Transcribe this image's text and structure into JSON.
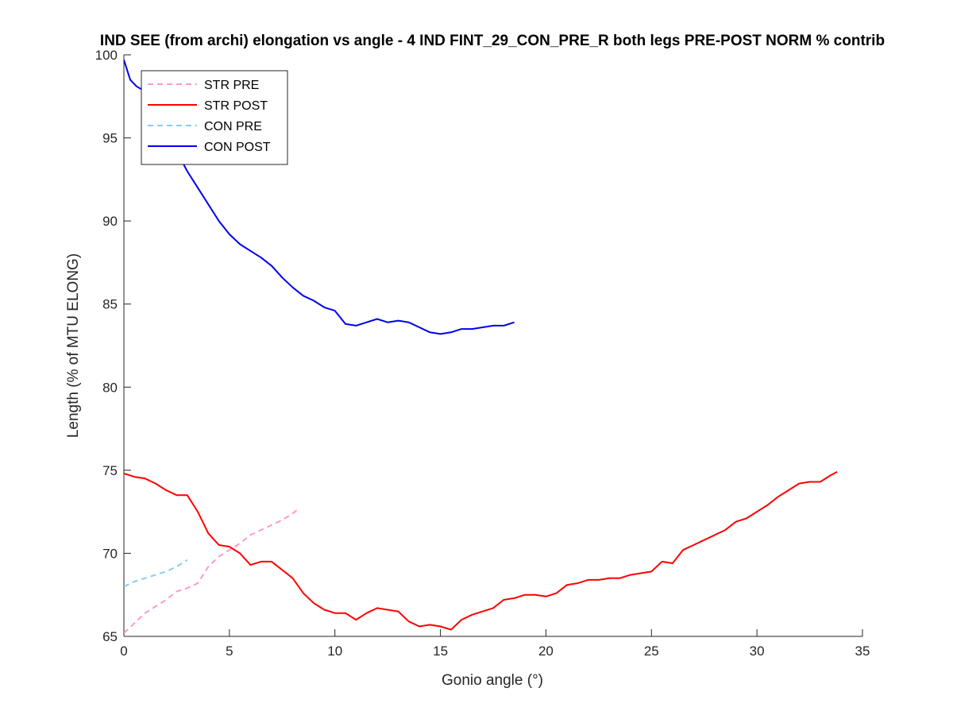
{
  "chart_data": {
    "type": "line",
    "title": "IND SEE (from archi) elongation vs angle - 4 IND FINT_29_CON_PRE_R both legs PRE-POST NORM % contrib",
    "xlabel": "Gonio angle (°)",
    "ylabel": "Length (% of MTU ELONG)",
    "xlim": [
      0,
      35
    ],
    "ylim": [
      65,
      100
    ],
    "xticks": [
      0,
      5,
      10,
      15,
      20,
      25,
      30,
      35
    ],
    "yticks": [
      65,
      70,
      75,
      80,
      85,
      90,
      95,
      100
    ],
    "grid": false,
    "legend_position": "top-left",
    "series": [
      {
        "name": "STR PRE",
        "color": "#ff99cc",
        "style": "dashed",
        "x": [
          0,
          0.5,
          1,
          1.5,
          2,
          2.5,
          3,
          3.5,
          4,
          4.5,
          5,
          5.5,
          6,
          6.5,
          7,
          7.5,
          8,
          8.3
        ],
        "y": [
          65.2,
          65.8,
          66.4,
          66.8,
          67.2,
          67.7,
          67.9,
          68.2,
          69.2,
          69.8,
          70.2,
          70.6,
          71.1,
          71.4,
          71.7,
          72.0,
          72.4,
          72.7
        ]
      },
      {
        "name": "STR POST",
        "color": "#ff0000",
        "style": "solid",
        "x": [
          0,
          0.5,
          1,
          1.5,
          2,
          2.5,
          3,
          3.5,
          4,
          4.5,
          5,
          5.5,
          6,
          6.5,
          7,
          7.5,
          8,
          8.5,
          9,
          9.5,
          10,
          10.5,
          11,
          11.5,
          12,
          12.5,
          13,
          13.5,
          14,
          14.5,
          15,
          15.5,
          16,
          16.5,
          17,
          17.5,
          18,
          18.5,
          19,
          19.5,
          20,
          20.5,
          21,
          21.5,
          22,
          22.5,
          23,
          23.5,
          24,
          24.5,
          25,
          25.5,
          26,
          26.5,
          27,
          27.5,
          28,
          28.5,
          29,
          29.5,
          30,
          30.5,
          31,
          31.5,
          32,
          32.5,
          33,
          33.5,
          33.8
        ],
        "y": [
          74.8,
          74.6,
          74.5,
          74.2,
          73.8,
          73.5,
          73.5,
          72.5,
          71.2,
          70.5,
          70.4,
          70.0,
          69.3,
          69.5,
          69.5,
          69.0,
          68.5,
          67.6,
          67.0,
          66.6,
          66.4,
          66.4,
          66.0,
          66.4,
          66.7,
          66.6,
          66.5,
          65.9,
          65.6,
          65.7,
          65.6,
          65.4,
          66.0,
          66.3,
          66.5,
          66.7,
          67.2,
          67.3,
          67.5,
          67.5,
          67.4,
          67.6,
          68.1,
          68.2,
          68.4,
          68.4,
          68.5,
          68.5,
          68.7,
          68.8,
          68.9,
          69.5,
          69.4,
          70.2,
          70.5,
          70.8,
          71.1,
          71.4,
          71.9,
          72.1,
          72.5,
          72.9,
          73.4,
          73.8,
          74.2,
          74.3,
          74.3,
          74.7,
          74.9
        ]
      },
      {
        "name": "CON PRE",
        "color": "#88ccee",
        "style": "dashed",
        "x": [
          0,
          0.5,
          1,
          1.5,
          2,
          2.5,
          3
        ],
        "y": [
          68.0,
          68.3,
          68.5,
          68.7,
          68.9,
          69.2,
          69.6
        ]
      },
      {
        "name": "CON POST",
        "color": "#0000ee",
        "style": "solid",
        "x": [
          0,
          0.3,
          0.6,
          1,
          1.5,
          2,
          2.5,
          3,
          3.5,
          4,
          4.5,
          5,
          5.5,
          6,
          6.5,
          7,
          7.5,
          8,
          8.5,
          9,
          9.5,
          10,
          10.5,
          11,
          11.5,
          12,
          12.5,
          13,
          13.5,
          14,
          14.5,
          15,
          15.5,
          16,
          16.5,
          17,
          17.5,
          18,
          18.5
        ],
        "y": [
          99.7,
          98.5,
          98.1,
          97.8,
          97.0,
          95.5,
          94.2,
          93.0,
          92.0,
          91.0,
          90.0,
          89.2,
          88.6,
          88.2,
          87.8,
          87.3,
          86.6,
          86.0,
          85.5,
          85.2,
          84.8,
          84.6,
          83.8,
          83.7,
          83.9,
          84.1,
          83.9,
          84.0,
          83.9,
          83.6,
          83.3,
          83.2,
          83.3,
          83.5,
          83.5,
          83.6,
          83.7,
          83.7,
          83.9
        ]
      }
    ]
  }
}
